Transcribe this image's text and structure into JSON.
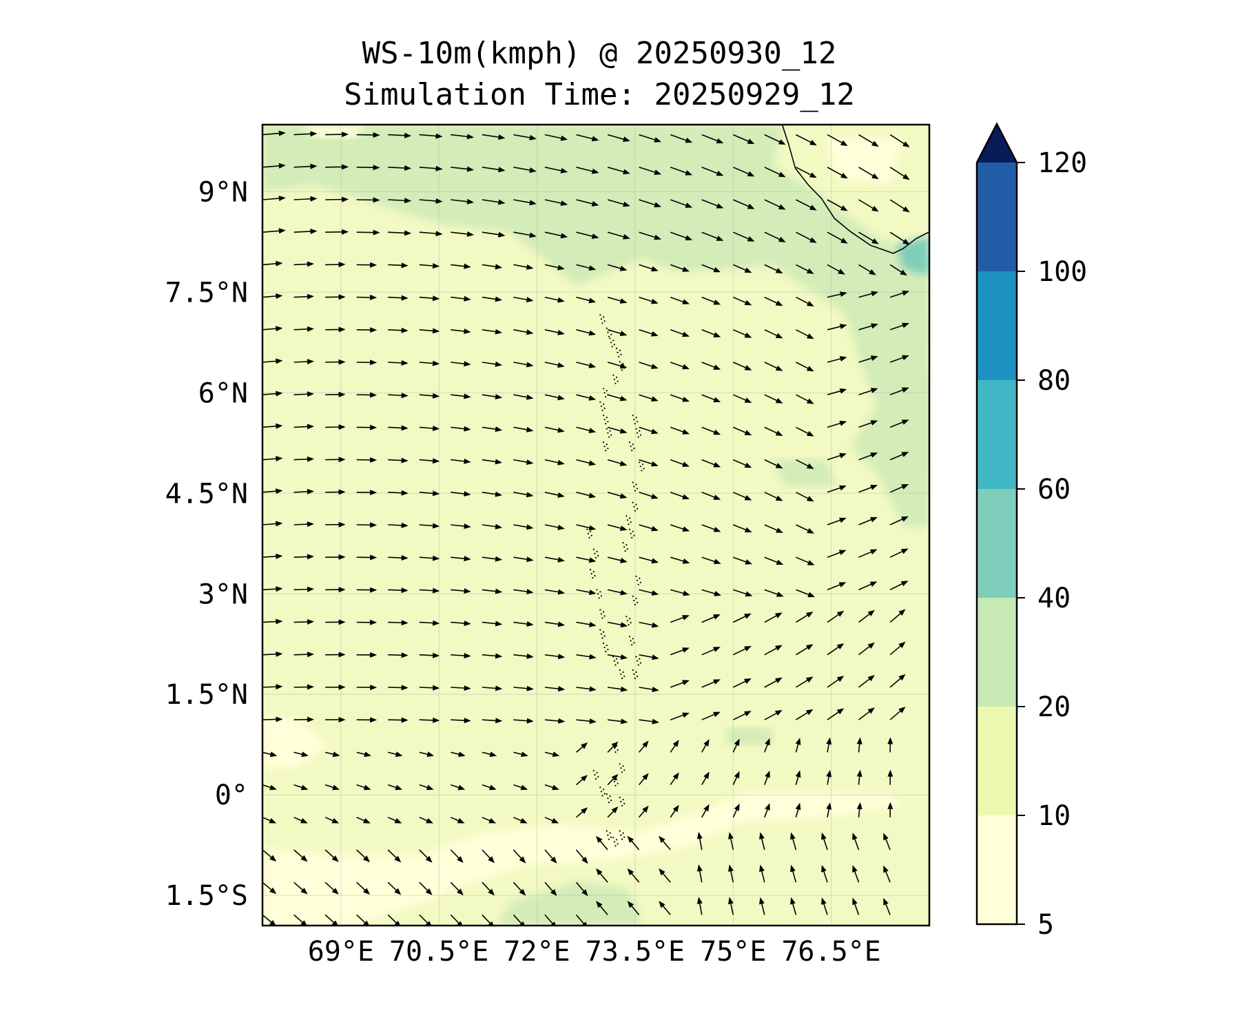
{
  "title": "WS-10m(kmph) @ 20250930_12",
  "subtitle": "Simulation Time: 20250929_12",
  "map": {
    "lon_range": [
      67.8,
      78.0
    ],
    "lat_range": [
      -1.95,
      10.0
    ],
    "lat_ticks": [
      {
        "value": 9,
        "label": "9°N"
      },
      {
        "value": 7.5,
        "label": "7.5°N"
      },
      {
        "value": 6,
        "label": "6°N"
      },
      {
        "value": 4.5,
        "label": "4.5°N"
      },
      {
        "value": 3,
        "label": "3°N"
      },
      {
        "value": 1.5,
        "label": "1.5°N"
      },
      {
        "value": 0,
        "label": "0°"
      },
      {
        "value": -1.5,
        "label": "1.5°S"
      }
    ],
    "lon_ticks": [
      {
        "value": 69,
        "label": "69°E"
      },
      {
        "value": 70.5,
        "label": "70.5°E"
      },
      {
        "value": 72,
        "label": "72°E"
      },
      {
        "value": 73.5,
        "label": "73.5°E"
      },
      {
        "value": 75,
        "label": "75°E"
      },
      {
        "value": 76.5,
        "label": "76.5°E"
      }
    ],
    "gridlines": true
  },
  "colorbar": {
    "levels": [
      5,
      10,
      20,
      40,
      60,
      80,
      100,
      120
    ],
    "tick_labels": [
      "5",
      "10",
      "20",
      "40",
      "60",
      "80",
      "100",
      "120"
    ],
    "colors": [
      "#ffffd9",
      "#edf8b1",
      "#c7e9b4",
      "#7fcdbb",
      "#41b6c4",
      "#1d91c0",
      "#225ea8",
      "#0c2c84"
    ],
    "extend_color": "#081d58",
    "extend": "max"
  },
  "field_colors": {
    "calm": "#ffffd9",
    "light": "#f2f9c2",
    "moderate": "#d3ecb8",
    "strong": "#7fcdbb",
    "land_edge": "#000000"
  }
}
